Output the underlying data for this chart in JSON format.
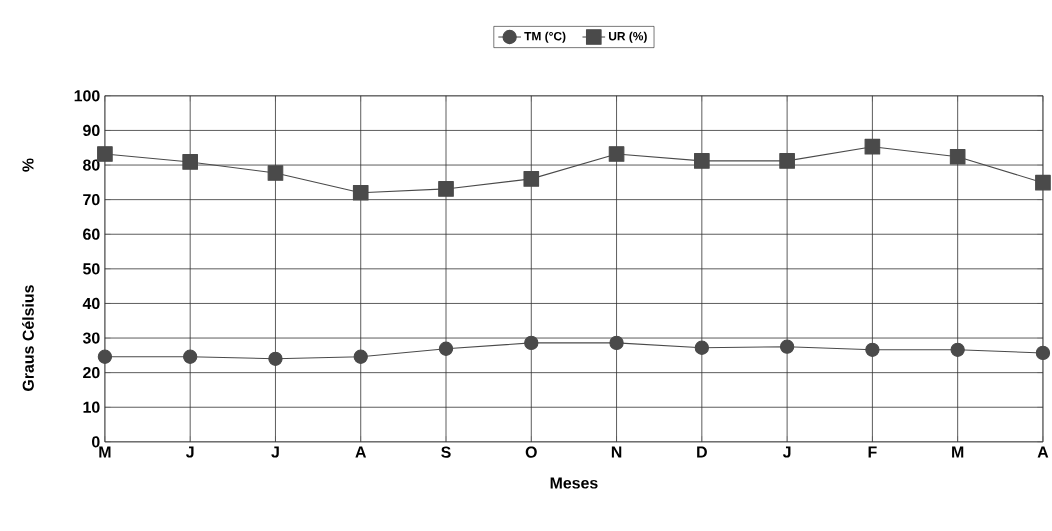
{
  "chart_data": {
    "type": "line",
    "xlabel": "Meses",
    "ylabel": "Graus Célsius",
    "annotations": [
      "%"
    ],
    "categories": [
      "M",
      "J",
      "J",
      "A",
      "S",
      "O",
      "N",
      "D",
      "J",
      "F",
      "M",
      "A"
    ],
    "series": [
      {
        "name": "TM (°C)",
        "color": "#4a4a4a",
        "marker": "circle",
        "values": [
          24.6,
          24.6,
          24,
          24.6,
          26.9,
          28.6,
          28.6,
          27.2,
          27.5,
          26.6,
          26.6,
          25.7
        ]
      },
      {
        "name": "UR (%)",
        "color": "#4a4a4a",
        "marker": "square",
        "values": [
          83.2,
          80.9,
          77.7,
          72,
          73.1,
          76,
          83.2,
          81.2,
          81.2,
          85.3,
          82.4,
          74.9
        ]
      }
    ],
    "ylim": [
      0,
      100
    ],
    "yticks": [
      0,
      10,
      20,
      30,
      40,
      50,
      60,
      70,
      80,
      90,
      100
    ],
    "grid": true,
    "legend": "top"
  }
}
